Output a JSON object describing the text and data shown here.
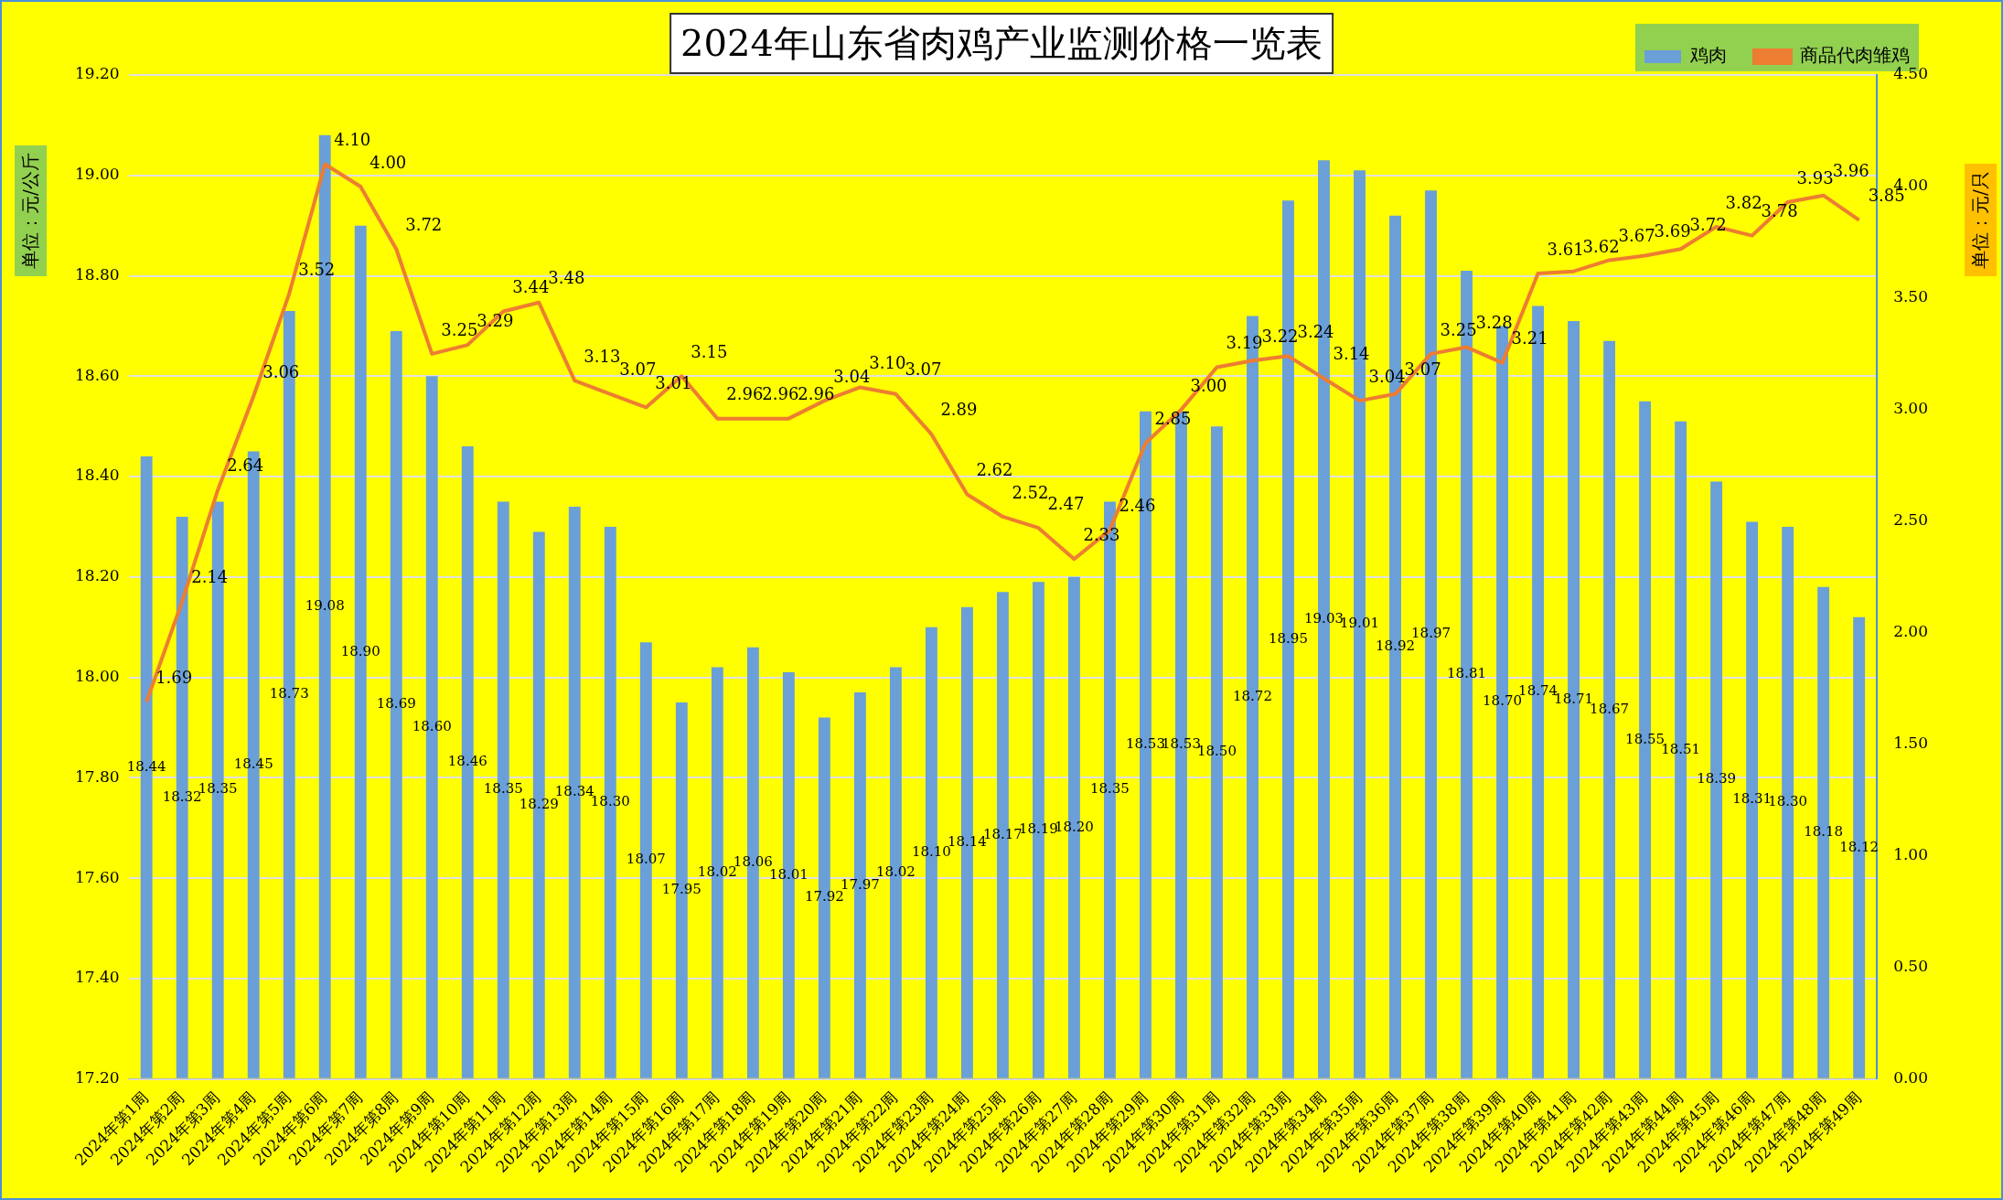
{
  "chart_data": {
    "type": "bar",
    "title": "2024年山东省肉鸡产业监测价格一览表",
    "ylabel": "单位：元/公斤",
    "y2label": "单位：元/只",
    "categories": [
      "2024年第1周",
      "2024年第2周",
      "2024年第3周",
      "2024年第4周",
      "2024年第5周",
      "2024年第6周",
      "2024年第7周",
      "2024年第8周",
      "2024年第9周",
      "2024年第10周",
      "2024年第11周",
      "2024年第12周",
      "2024年第13周",
      "2024年第14周",
      "2024年第15周",
      "2024年第16周",
      "2024年第17周",
      "2024年第18周",
      "2024年第19周",
      "2024年第20周",
      "2024年第21周",
      "2024年第22周",
      "2024年第23周",
      "2024年第24周",
      "2024年第25周",
      "2024年第26周",
      "2024年第27周",
      "2024年第28周",
      "2024年第29周",
      "2024年第30周",
      "2024年第31周",
      "2024年第32周",
      "2024年第33周",
      "2024年第34周",
      "2024年第35周",
      "2024年第36周",
      "2024年第37周",
      "2024年第38周",
      "2024年第39周",
      "2024年第40周",
      "2024年第41周",
      "2024年第42周",
      "2024年第43周",
      "2024年第44周",
      "2024年第45周",
      "2024年第46周",
      "2024年第47周",
      "2024年第48周",
      "2024年第49周"
    ],
    "series": [
      {
        "name": "鸡肉",
        "color": "#6a9fd8",
        "values": [
          18.44,
          18.32,
          18.35,
          18.45,
          18.73,
          19.08,
          18.9,
          18.69,
          18.6,
          18.46,
          18.35,
          18.29,
          18.34,
          18.3,
          18.07,
          17.95,
          18.02,
          18.06,
          18.01,
          17.92,
          17.97,
          18.02,
          18.1,
          18.14,
          18.17,
          18.19,
          18.2,
          18.35,
          18.53,
          18.53,
          18.5,
          18.72,
          18.95,
          19.03,
          19.01,
          18.92,
          18.97,
          18.81,
          18.7,
          18.74,
          18.71,
          18.67,
          18.55,
          18.51,
          18.39,
          18.31,
          18.3,
          18.18,
          18.12
        ],
        "value_labels": [
          "18.44",
          "18.32",
          "18.35",
          "18.45",
          "18.73",
          "19.08",
          "18.90",
          "18.69",
          "18.60",
          "18.46",
          "18.35",
          "18.29",
          "18.34",
          "18.30",
          "18.07",
          "17.95",
          "18.02",
          "18.06",
          "18.01",
          "17.92",
          "17.97",
          "18.02",
          "18.10",
          "18.14",
          "18.17",
          "18.19",
          "18.20",
          "18.35",
          "18.53",
          "18.53",
          "18.50",
          "18.72",
          "18.95",
          "19.03",
          "19.01",
          "18.92",
          "18.97",
          "18.81",
          "18.70",
          "18.74",
          "18.71",
          "18.67",
          "18.55",
          "18.51",
          "18.39",
          "18.31",
          "18.30",
          "18.18",
          "18.12"
        ]
      },
      {
        "name": "商品代肉雏鸡",
        "type": "line",
        "axis": "y2",
        "color": "#ed7d31",
        "values": [
          1.69,
          2.14,
          2.64,
          3.06,
          3.52,
          4.1,
          4.0,
          3.72,
          3.25,
          3.29,
          3.44,
          3.48,
          3.13,
          3.07,
          3.01,
          3.15,
          2.96,
          2.96,
          2.96,
          3.04,
          3.1,
          3.07,
          2.89,
          2.62,
          2.52,
          2.47,
          2.33,
          2.46,
          2.85,
          3.0,
          3.19,
          3.22,
          3.24,
          3.14,
          3.04,
          3.07,
          3.25,
          3.28,
          3.21,
          3.61,
          3.62,
          3.67,
          3.69,
          3.72,
          3.82,
          3.78,
          3.93,
          3.96,
          3.85
        ],
        "value_labels": [
          "1.69",
          "2.14",
          "2.64",
          "3.06",
          "3.52",
          "4.10",
          "4.00",
          "3.72",
          "3.25",
          "3.29",
          "3.44",
          "3.48",
          "3.13",
          "3.07",
          "3.01",
          "3.15",
          "2.96",
          "2.96",
          "2.96",
          "3.04",
          "3.10",
          "3.07",
          "2.89",
          "2.62",
          "2.52",
          "2.47",
          "2.33",
          "2.46",
          "2.85",
          "3.00",
          "3.19",
          "3.22",
          "3.24",
          "3.14",
          "3.04",
          "3.07",
          "3.25",
          "3.28",
          "3.21",
          "3.61",
          "3.62",
          "3.67",
          "3.69",
          "3.72",
          "3.82",
          "3.78",
          "3.93",
          "3.96",
          "3.85"
        ]
      }
    ],
    "ylim": [
      17.2,
      19.2
    ],
    "yticks": [
      {
        "value": 17.2,
        "label": "17.20"
      },
      {
        "value": 17.4,
        "label": "17.40"
      },
      {
        "value": 17.6,
        "label": "17.60"
      },
      {
        "value": 17.8,
        "label": "17.80"
      },
      {
        "value": 18,
        "label": "18.00"
      },
      {
        "value": 18.2,
        "label": "18.20"
      },
      {
        "value": 18.4,
        "label": "18.40"
      },
      {
        "value": 18.6,
        "label": "18.60"
      },
      {
        "value": 18.8,
        "label": "18.80"
      },
      {
        "value": 19,
        "label": "19.00"
      },
      {
        "value": 19.2,
        "label": "19.20"
      }
    ],
    "y2lim": [
      0,
      4.5
    ],
    "y2ticks": [
      {
        "value": 0,
        "label": "0.00"
      },
      {
        "value": 0.5,
        "label": "0.50"
      },
      {
        "value": 1,
        "label": "1.00"
      },
      {
        "value": 1.5,
        "label": "1.50"
      },
      {
        "value": 2,
        "label": "2.00"
      },
      {
        "value": 2.5,
        "label": "2.50"
      },
      {
        "value": 3,
        "label": "3.00"
      },
      {
        "value": 3.5,
        "label": "3.50"
      },
      {
        "value": 4,
        "label": "4.00"
      },
      {
        "value": 4.5,
        "label": "4.50"
      }
    ],
    "grid": "y",
    "legend": "top right",
    "marker": "none",
    "line_style": "solid"
  }
}
